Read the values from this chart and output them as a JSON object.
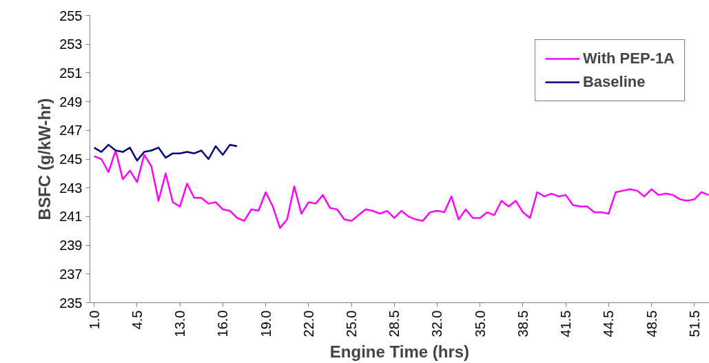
{
  "chart_data": {
    "type": "line",
    "xlabel": "Engine Time (hrs)",
    "ylabel": "BSFC (g/kW-hr)",
    "categories": [
      "1.0",
      null,
      null,
      null,
      null,
      null,
      "4.5",
      null,
      null,
      null,
      null,
      null,
      "13.0",
      null,
      null,
      null,
      null,
      null,
      "16.0",
      null,
      null,
      null,
      null,
      null,
      "19.0",
      null,
      null,
      null,
      null,
      null,
      "22.0",
      null,
      null,
      null,
      null,
      null,
      "25.0",
      null,
      null,
      null,
      null,
      null,
      "28.5",
      null,
      null,
      null,
      null,
      null,
      "32.0",
      null,
      null,
      null,
      null,
      null,
      "35.0",
      null,
      null,
      null,
      null,
      null,
      "38.5",
      null,
      null,
      null,
      null,
      null,
      "41.5",
      null,
      null,
      null,
      null,
      null,
      "44.5",
      null,
      null,
      null,
      null,
      null,
      "48.5",
      null,
      null,
      null,
      null,
      null,
      "51.5",
      null,
      null
    ],
    "series": [
      {
        "name": "With PEP-1A",
        "color": "#ff00ff",
        "values": [
          245.2,
          245.0,
          244.1,
          245.6,
          243.6,
          244.2,
          243.4,
          245.3,
          244.5,
          242.1,
          244.0,
          242.0,
          241.7,
          243.3,
          242.3,
          242.3,
          241.9,
          242.0,
          241.5,
          241.4,
          240.9,
          240.7,
          241.5,
          241.4,
          242.7,
          241.7,
          240.2,
          240.8,
          243.1,
          241.2,
          242.0,
          241.9,
          242.5,
          241.6,
          241.5,
          240.8,
          240.7,
          241.1,
          241.5,
          241.4,
          241.2,
          241.4,
          240.9,
          241.4,
          241.0,
          240.8,
          240.7,
          241.3,
          241.4,
          241.3,
          242.4,
          240.8,
          241.5,
          240.9,
          240.9,
          241.3,
          241.1,
          242.1,
          241.7,
          242.1,
          241.3,
          240.9,
          242.7,
          242.4,
          242.6,
          242.4,
          242.5,
          241.8,
          241.7,
          241.7,
          241.3,
          241.3,
          241.2,
          242.7,
          242.8,
          242.9,
          242.8,
          242.4,
          242.9,
          242.5,
          242.6,
          242.5,
          242.2,
          242.1,
          242.2,
          242.7,
          242.5
        ]
      },
      {
        "name": "Baseline",
        "color": "#000080",
        "values": [
          245.8,
          245.5,
          246.0,
          245.6,
          245.5,
          245.8,
          244.9,
          245.5,
          245.6,
          245.8,
          245.1,
          245.4,
          245.4,
          245.5,
          245.4,
          245.6,
          245.0,
          245.9,
          245.3,
          246.0,
          245.9,
          null,
          null,
          null,
          null,
          null,
          null,
          null,
          null,
          null,
          null,
          null,
          null,
          null,
          null,
          null,
          null,
          null,
          null,
          null,
          null,
          null,
          null,
          null,
          null,
          null,
          null,
          null,
          null,
          null,
          null,
          null,
          null,
          null,
          null,
          null,
          null,
          null,
          null,
          null,
          null,
          null,
          null,
          null,
          null,
          null,
          null,
          null,
          null,
          null,
          null,
          null,
          null,
          null,
          null,
          null,
          null,
          null,
          null,
          null,
          null,
          null,
          null,
          null,
          null,
          null,
          null
        ]
      }
    ],
    "ylim": [
      235,
      255
    ],
    "yticks": [
      235,
      237,
      239,
      241,
      243,
      245,
      247,
      249,
      251,
      253,
      255
    ],
    "legend": "top right"
  }
}
